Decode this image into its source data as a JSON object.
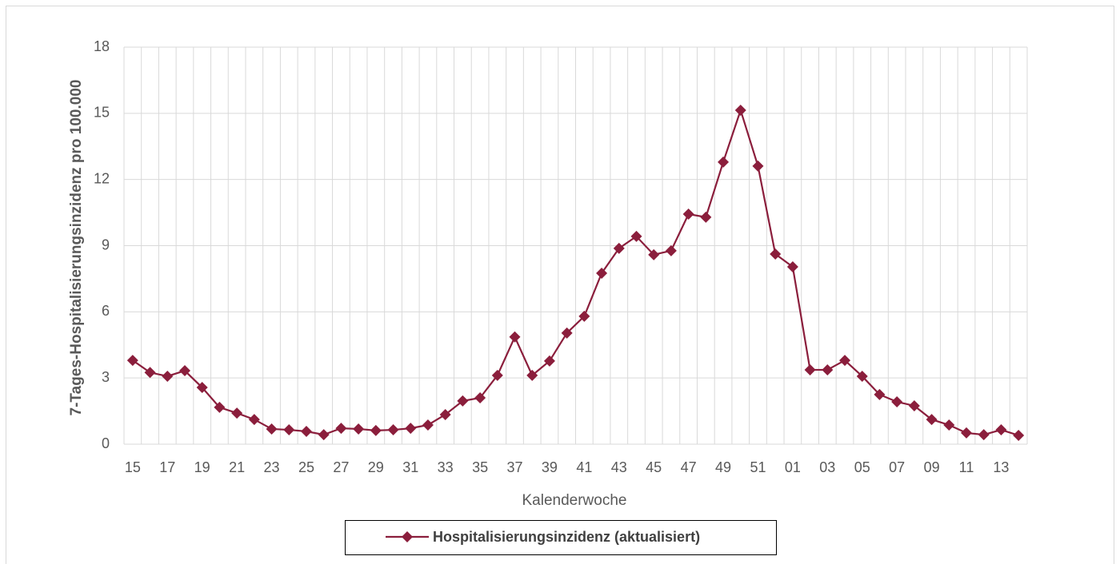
{
  "chart_data": {
    "type": "line",
    "y_label": "7-Tages-Hospitalisierungsinzidenz pro 100.000",
    "x_label": "Kalenderwoche",
    "categories": [
      "15",
      null,
      "17",
      null,
      "19",
      null,
      "21",
      null,
      "23",
      null,
      "25",
      null,
      "27",
      null,
      "29",
      null,
      "31",
      null,
      "33",
      null,
      "35",
      null,
      "37",
      null,
      "39",
      null,
      "41",
      null,
      "43",
      null,
      "45",
      null,
      "47",
      null,
      "49",
      null,
      "51",
      null,
      "01",
      null,
      "03",
      null,
      "05",
      null,
      "07",
      null,
      "09",
      null,
      "11",
      null,
      "13",
      null
    ],
    "series": [
      {
        "name": "Hospitalisierungsinzidenz (aktualisiert)",
        "color": "#8b1e3c",
        "values": [
          3.8,
          3.25,
          3.08,
          3.33,
          2.57,
          1.67,
          1.41,
          1.12,
          0.69,
          0.65,
          0.58,
          0.43,
          0.72,
          0.69,
          0.62,
          0.65,
          0.72,
          0.87,
          1.34,
          1.96,
          2.1,
          3.12,
          4.86,
          3.12,
          3.77,
          5.04,
          5.8,
          7.75,
          8.88,
          9.42,
          8.59,
          8.77,
          10.43,
          10.29,
          12.79,
          15.14,
          12.61,
          8.62,
          8.04,
          3.37,
          3.37,
          3.8,
          3.08,
          2.25,
          1.92,
          1.74,
          1.12,
          0.87,
          0.51,
          0.43,
          0.65,
          0.4
        ]
      }
    ],
    "ylim": [
      0,
      18
    ],
    "yticks": [
      0,
      3,
      6,
      9,
      12,
      15,
      18
    ],
    "grid": true,
    "legend": "bottom"
  }
}
